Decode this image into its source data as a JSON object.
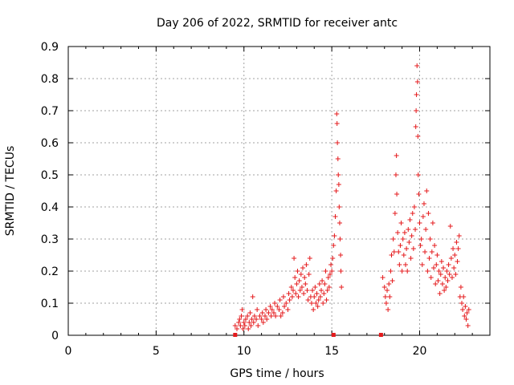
{
  "chart_data": {
    "type": "scatter",
    "title": "Day 206 of 2022, SRMTID for receiver antc",
    "xlabel": "GPS time / hours",
    "ylabel": "SRMTID / TECUs",
    "xlim": [
      0,
      24
    ],
    "ylim": [
      0,
      0.9
    ],
    "xticks": [
      0,
      5,
      10,
      15,
      20
    ],
    "yticks": [
      0,
      0.1,
      0.2,
      0.3,
      0.4,
      0.5,
      0.6,
      0.7,
      0.8,
      0.9
    ],
    "grid": true,
    "marker": "+",
    "color": "#e41a1c",
    "series": [
      {
        "name": "SRMTID",
        "points": [
          [
            9.5,
            0.03
          ],
          [
            9.6,
            0.02
          ],
          [
            9.7,
            0.04
          ],
          [
            9.75,
            0.05
          ],
          [
            9.8,
            0.03
          ],
          [
            9.85,
            0.06
          ],
          [
            9.9,
            0.08
          ],
          [
            9.95,
            0.02
          ],
          [
            10.0,
            0.04
          ],
          [
            10.05,
            0.03
          ],
          [
            10.1,
            0.05
          ],
          [
            10.2,
            0.06
          ],
          [
            10.25,
            0.02
          ],
          [
            10.3,
            0.04
          ],
          [
            10.35,
            0.07
          ],
          [
            10.4,
            0.03
          ],
          [
            10.45,
            0.05
          ],
          [
            10.5,
            0.12
          ],
          [
            10.55,
            0.04
          ],
          [
            10.6,
            0.06
          ],
          [
            10.7,
            0.05
          ],
          [
            10.75,
            0.08
          ],
          [
            10.8,
            0.03
          ],
          [
            10.9,
            0.06
          ],
          [
            11.0,
            0.05
          ],
          [
            11.05,
            0.07
          ],
          [
            11.1,
            0.04
          ],
          [
            11.2,
            0.06
          ],
          [
            11.25,
            0.08
          ],
          [
            11.3,
            0.05
          ],
          [
            11.4,
            0.07
          ],
          [
            11.5,
            0.09
          ],
          [
            11.55,
            0.06
          ],
          [
            11.6,
            0.08
          ],
          [
            11.7,
            0.07
          ],
          [
            11.75,
            0.1
          ],
          [
            11.8,
            0.06
          ],
          [
            11.9,
            0.09
          ],
          [
            12.0,
            0.08
          ],
          [
            12.05,
            0.11
          ],
          [
            12.1,
            0.06
          ],
          [
            12.2,
            0.07
          ],
          [
            12.25,
            0.12
          ],
          [
            12.3,
            0.09
          ],
          [
            12.4,
            0.1
          ],
          [
            12.5,
            0.08
          ],
          [
            12.55,
            0.13
          ],
          [
            12.6,
            0.11
          ],
          [
            12.7,
            0.15
          ],
          [
            12.75,
            0.12
          ],
          [
            12.8,
            0.14
          ],
          [
            12.85,
            0.24
          ],
          [
            12.9,
            0.18
          ],
          [
            12.95,
            0.13
          ],
          [
            13.0,
            0.16
          ],
          [
            13.05,
            0.2
          ],
          [
            13.1,
            0.12
          ],
          [
            13.15,
            0.17
          ],
          [
            13.2,
            0.14
          ],
          [
            13.25,
            0.19
          ],
          [
            13.3,
            0.15
          ],
          [
            13.35,
            0.21
          ],
          [
            13.4,
            0.13
          ],
          [
            13.45,
            0.18
          ],
          [
            13.5,
            0.16
          ],
          [
            13.55,
            0.22
          ],
          [
            13.6,
            0.14
          ],
          [
            13.65,
            0.11
          ],
          [
            13.7,
            0.19
          ],
          [
            13.75,
            0.24
          ],
          [
            13.8,
            0.12
          ],
          [
            13.85,
            0.1
          ],
          [
            13.9,
            0.14
          ],
          [
            13.95,
            0.08
          ],
          [
            14.0,
            0.12
          ],
          [
            14.05,
            0.15
          ],
          [
            14.1,
            0.1
          ],
          [
            14.15,
            0.13
          ],
          [
            14.2,
            0.09
          ],
          [
            14.25,
            0.11
          ],
          [
            14.3,
            0.16
          ],
          [
            14.35,
            0.12
          ],
          [
            14.4,
            0.14
          ],
          [
            14.45,
            0.17
          ],
          [
            14.5,
            0.1
          ],
          [
            14.55,
            0.13
          ],
          [
            14.6,
            0.16
          ],
          [
            14.65,
            0.2
          ],
          [
            14.7,
            0.11
          ],
          [
            14.75,
            0.14
          ],
          [
            14.8,
            0.18
          ],
          [
            14.85,
            0.15
          ],
          [
            14.9,
            0.19
          ],
          [
            14.95,
            0.22
          ],
          [
            15.0,
            0.2
          ],
          [
            15.05,
            0.24
          ],
          [
            15.1,
            0.28
          ],
          [
            15.15,
            0.31
          ],
          [
            15.2,
            0.37
          ],
          [
            15.25,
            0.45
          ],
          [
            15.28,
            0.69
          ],
          [
            15.3,
            0.66
          ],
          [
            15.32,
            0.6
          ],
          [
            15.35,
            0.55
          ],
          [
            15.37,
            0.5
          ],
          [
            15.4,
            0.47
          ],
          [
            15.42,
            0.4
          ],
          [
            15.45,
            0.35
          ],
          [
            15.47,
            0.3
          ],
          [
            15.5,
            0.25
          ],
          [
            15.52,
            0.2
          ],
          [
            15.55,
            0.15
          ],
          [
            17.9,
            0.18
          ],
          [
            18.0,
            0.15
          ],
          [
            18.05,
            0.12
          ],
          [
            18.1,
            0.1
          ],
          [
            18.15,
            0.14
          ],
          [
            18.2,
            0.08
          ],
          [
            18.25,
            0.16
          ],
          [
            18.3,
            0.12
          ],
          [
            18.35,
            0.2
          ],
          [
            18.4,
            0.25
          ],
          [
            18.45,
            0.17
          ],
          [
            18.5,
            0.3
          ],
          [
            18.55,
            0.26
          ],
          [
            18.6,
            0.38
          ],
          [
            18.65,
            0.5
          ],
          [
            18.68,
            0.56
          ],
          [
            18.7,
            0.44
          ],
          [
            18.75,
            0.32
          ],
          [
            18.8,
            0.26
          ],
          [
            18.85,
            0.22
          ],
          [
            18.9,
            0.28
          ],
          [
            18.95,
            0.35
          ],
          [
            19.0,
            0.2
          ],
          [
            19.05,
            0.3
          ],
          [
            19.1,
            0.25
          ],
          [
            19.15,
            0.32
          ],
          [
            19.2,
            0.22
          ],
          [
            19.25,
            0.27
          ],
          [
            19.3,
            0.2
          ],
          [
            19.35,
            0.33
          ],
          [
            19.4,
            0.29
          ],
          [
            19.45,
            0.36
          ],
          [
            19.5,
            0.24
          ],
          [
            19.55,
            0.31
          ],
          [
            19.6,
            0.38
          ],
          [
            19.65,
            0.27
          ],
          [
            19.7,
            0.4
          ],
          [
            19.75,
            0.33
          ],
          [
            19.78,
            0.65
          ],
          [
            19.8,
            0.7
          ],
          [
            19.82,
            0.75
          ],
          [
            19.85,
            0.84
          ],
          [
            19.88,
            0.79
          ],
          [
            19.9,
            0.62
          ],
          [
            19.92,
            0.5
          ],
          [
            19.95,
            0.44
          ],
          [
            20.0,
            0.35
          ],
          [
            20.05,
            0.28
          ],
          [
            20.1,
            0.3
          ],
          [
            20.15,
            0.22
          ],
          [
            20.2,
            0.37
          ],
          [
            20.25,
            0.41
          ],
          [
            20.3,
            0.26
          ],
          [
            20.35,
            0.33
          ],
          [
            20.4,
            0.45
          ],
          [
            20.45,
            0.2
          ],
          [
            20.5,
            0.38
          ],
          [
            20.55,
            0.24
          ],
          [
            20.6,
            0.3
          ],
          [
            20.65,
            0.18
          ],
          [
            20.7,
            0.26
          ],
          [
            20.75,
            0.35
          ],
          [
            20.8,
            0.21
          ],
          [
            20.85,
            0.28
          ],
          [
            20.9,
            0.16
          ],
          [
            20.95,
            0.22
          ],
          [
            21.0,
            0.25
          ],
          [
            21.05,
            0.17
          ],
          [
            21.1,
            0.2
          ],
          [
            21.15,
            0.13
          ],
          [
            21.2,
            0.19
          ],
          [
            21.25,
            0.23
          ],
          [
            21.3,
            0.16
          ],
          [
            21.35,
            0.21
          ],
          [
            21.4,
            0.14
          ],
          [
            21.45,
            0.18
          ],
          [
            21.5,
            0.15
          ],
          [
            21.55,
            0.2
          ],
          [
            21.6,
            0.17
          ],
          [
            21.65,
            0.22
          ],
          [
            21.7,
            0.19
          ],
          [
            21.75,
            0.34
          ],
          [
            21.8,
            0.24
          ],
          [
            21.85,
            0.18
          ],
          [
            21.9,
            0.27
          ],
          [
            21.95,
            0.21
          ],
          [
            22.0,
            0.25
          ],
          [
            22.05,
            0.19
          ],
          [
            22.1,
            0.29
          ],
          [
            22.15,
            0.23
          ],
          [
            22.2,
            0.27
          ],
          [
            22.25,
            0.31
          ],
          [
            22.3,
            0.12
          ],
          [
            22.35,
            0.15
          ],
          [
            22.4,
            0.1
          ],
          [
            22.45,
            0.08
          ],
          [
            22.5,
            0.12
          ],
          [
            22.55,
            0.06
          ],
          [
            22.6,
            0.09
          ],
          [
            22.65,
            0.05
          ],
          [
            22.7,
            0.07
          ],
          [
            22.75,
            0.03
          ],
          [
            22.8,
            0.08
          ]
        ]
      }
    ],
    "zero_points_x": [
      9.5,
      15.1,
      17.8
    ]
  }
}
